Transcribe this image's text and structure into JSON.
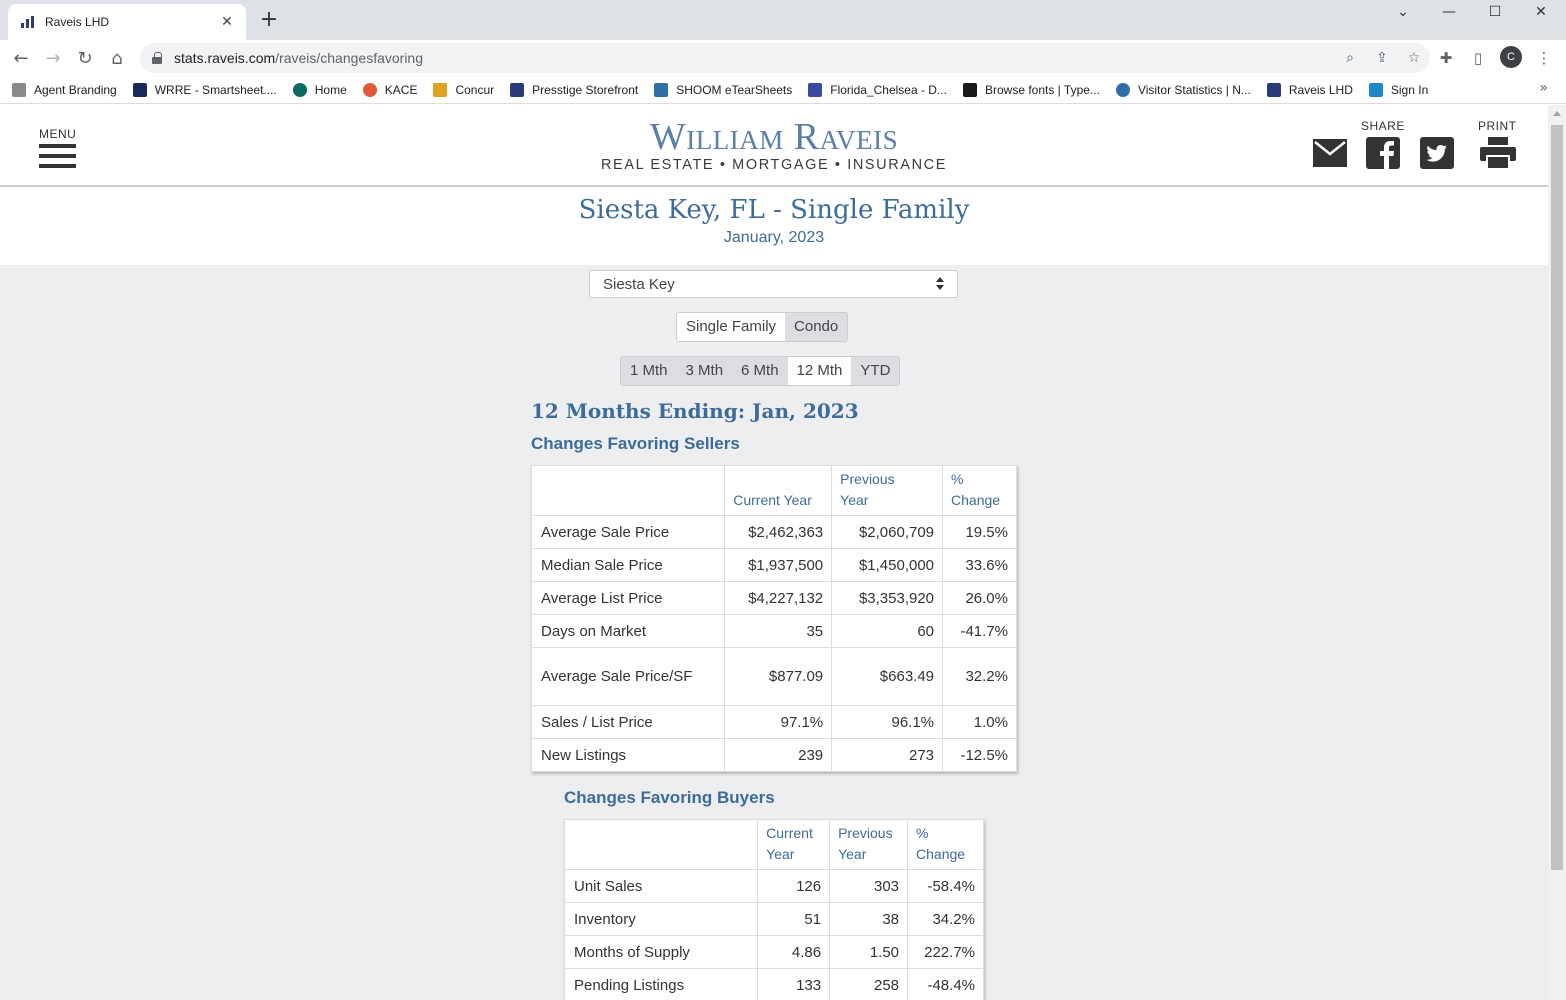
{
  "browser": {
    "tab_title": "Raveis LHD",
    "url_domain": "stats.raveis.com",
    "url_path": "/raveis/changesfavoring",
    "profile_initial": "C",
    "bookmarks": [
      {
        "label": "Agent Branding",
        "color": "#8a8a8a"
      },
      {
        "label": "WRRE - Smartsheet....",
        "color": "#1a2a5a"
      },
      {
        "label": "Home",
        "color": "#0b6a62"
      },
      {
        "label": "KACE",
        "color": "#e05a3a"
      },
      {
        "label": "Concur",
        "color": "#e0a020"
      },
      {
        "label": "Presstige Storefront",
        "color": "#2b3b7a"
      },
      {
        "label": "SHOOM eTearSheets",
        "color": "#2f6fa8"
      },
      {
        "label": "Florida_Chelsea - D...",
        "color": "#3a4aa0"
      },
      {
        "label": "Browse fonts | Type...",
        "color": "#1a1a1a"
      },
      {
        "label": "Visitor Statistics | N...",
        "color": "#2f6fa8"
      },
      {
        "label": "Raveis LHD",
        "color": "#2b3b7a"
      },
      {
        "label": "Sign In",
        "color": "#1e88c8"
      }
    ]
  },
  "header": {
    "menu_label": "MENU",
    "logo_name": "William Raveis",
    "logo_tagline": "REAL ESTATE • MORTGAGE • INSURANCE",
    "share_label": "SHARE",
    "print_label": "PRINT"
  },
  "title": {
    "main": "Siesta Key, FL - Single Family",
    "date": "January, 2023"
  },
  "controls": {
    "area_select": "Siesta Key",
    "property_types": [
      {
        "label": "Single Family",
        "active": true
      },
      {
        "label": "Condo",
        "active": false
      }
    ],
    "periods": [
      {
        "label": "1 Mth",
        "active": false
      },
      {
        "label": "3 Mth",
        "active": false
      },
      {
        "label": "6 Mth",
        "active": false
      },
      {
        "label": "12 Mth",
        "active": true
      },
      {
        "label": "YTD",
        "active": false
      }
    ]
  },
  "report": {
    "period_heading": "12 Months Ending:  Jan, 2023",
    "sellers": {
      "heading": "Changes Favoring Sellers",
      "columns": [
        "Current Year",
        "Previous\nYear",
        "%\nChange"
      ],
      "rows": [
        {
          "label": "Average Sale Price",
          "current": "$2,462,363",
          "previous": "$2,060,709",
          "change": "19.5%"
        },
        {
          "label": "Median Sale Price",
          "current": "$1,937,500",
          "previous": "$1,450,000",
          "change": "33.6%"
        },
        {
          "label": "Average List Price",
          "current": "$4,227,132",
          "previous": "$3,353,920",
          "change": "26.0%"
        },
        {
          "label": "Days on Market",
          "current": "35",
          "previous": "60",
          "change": "-41.7%"
        },
        {
          "label": "Average Sale Price/SF",
          "current": "$877.09",
          "previous": "$663.49",
          "change": "32.2%"
        },
        {
          "label": "Sales / List Price",
          "current": "97.1%",
          "previous": "96.1%",
          "change": "1.0%"
        },
        {
          "label": "New Listings",
          "current": "239",
          "previous": "273",
          "change": "-12.5%"
        }
      ]
    },
    "buyers": {
      "heading": "Changes Favoring Buyers",
      "columns": [
        "Current\nYear",
        "Previous\nYear",
        "%\nChange"
      ],
      "rows": [
        {
          "label": "Unit Sales",
          "current": "126",
          "previous": "303",
          "change": "-58.4%"
        },
        {
          "label": "Inventory",
          "current": "51",
          "previous": "38",
          "change": "34.2%"
        },
        {
          "label": "Months of Supply",
          "current": "4.86",
          "previous": "1.50",
          "change": "222.7%"
        },
        {
          "label": "Pending Listings",
          "current": "133",
          "previous": "258",
          "change": "-48.4%"
        }
      ]
    }
  },
  "colors": {
    "accent": "#3d6c99",
    "page_bg": "#edeef0",
    "segment_bg": "#dcdde0"
  }
}
